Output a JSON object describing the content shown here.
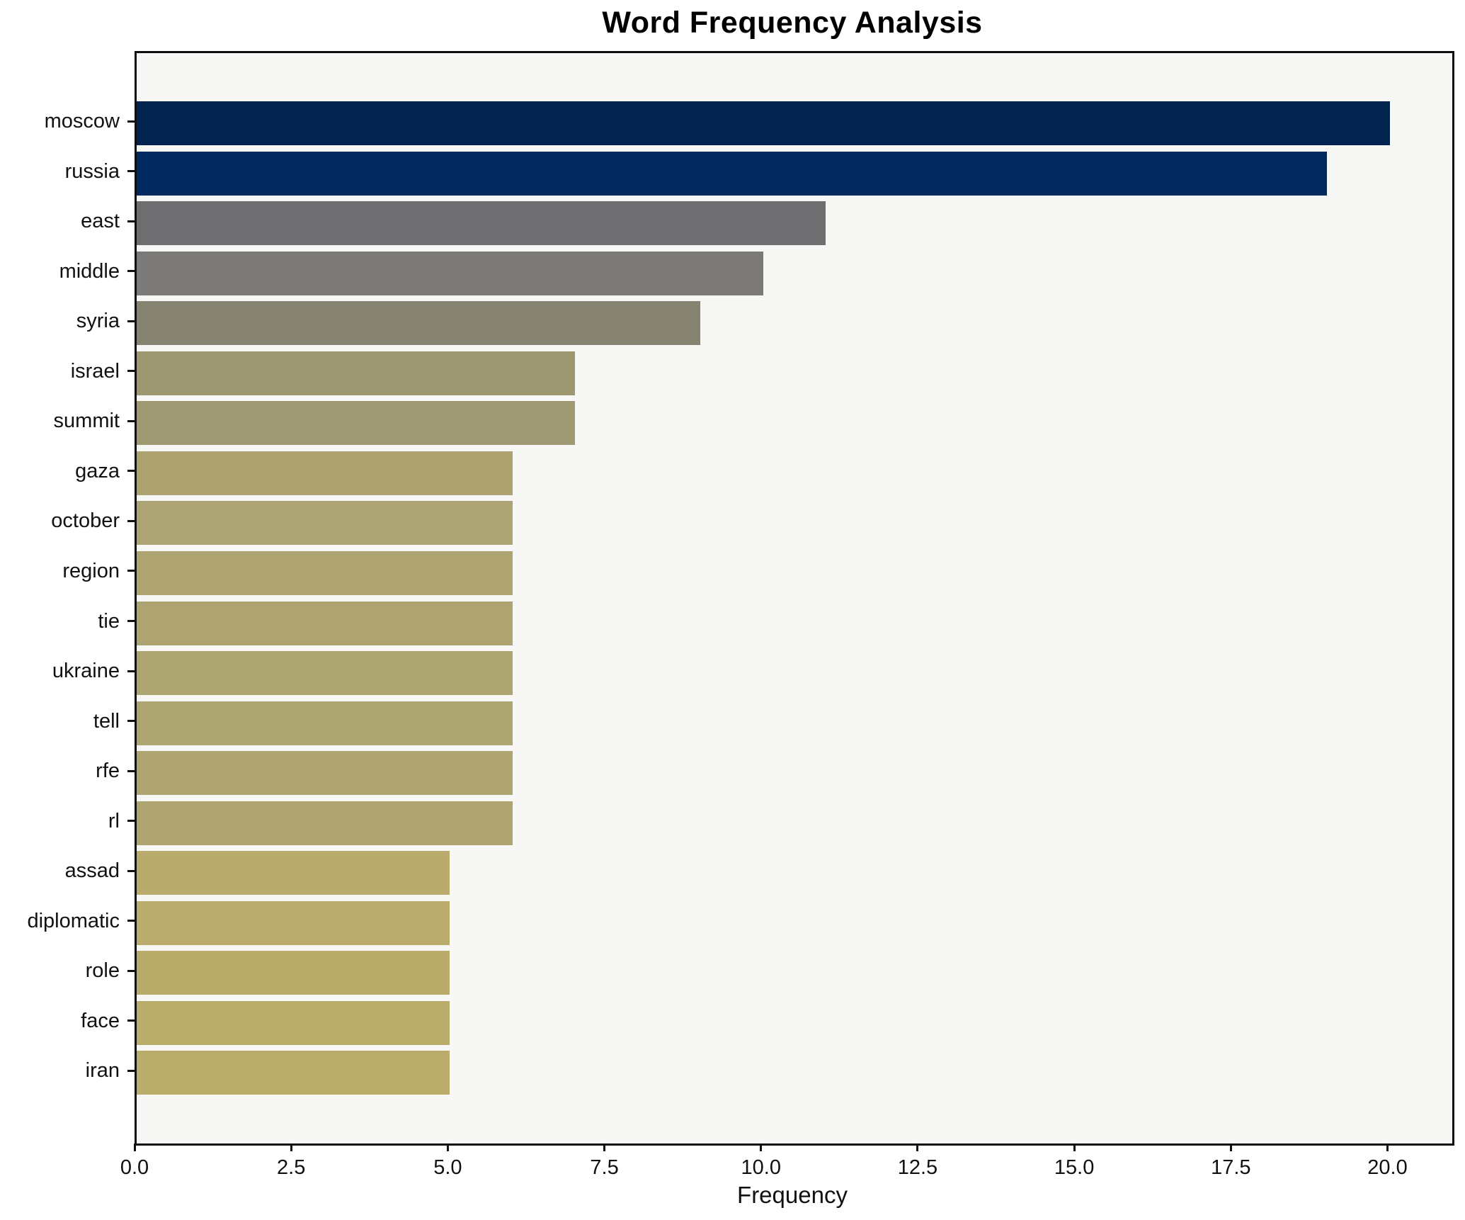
{
  "chart_data": {
    "type": "bar",
    "orientation": "horizontal",
    "title": "Word Frequency Analysis",
    "xlabel": "Frequency",
    "ylabel": "",
    "xlim": [
      0,
      21
    ],
    "grid": false,
    "legend": null,
    "categories": [
      "moscow",
      "russia",
      "east",
      "middle",
      "syria",
      "israel",
      "summit",
      "gaza",
      "october",
      "region",
      "tie",
      "ukraine",
      "tell",
      "rfe",
      "rl",
      "assad",
      "diplomatic",
      "role",
      "face",
      "iran"
    ],
    "values": [
      20,
      19,
      11,
      10,
      9,
      7,
      7,
      6,
      6,
      6,
      6,
      6,
      6,
      6,
      6,
      5,
      5,
      5,
      5,
      5
    ],
    "bar_colors": [
      "#022350",
      "#032a60",
      "#6f6f71",
      "#7b7a78",
      "#878371",
      "#9d9772",
      "#9f9973",
      "#aca371",
      "#aca472",
      "#ada471",
      "#ada471",
      "#ada572",
      "#ada572",
      "#aea572",
      "#aea571",
      "#b8ab6b",
      "#b9ac6c",
      "#b9ac6b",
      "#b9ad6c",
      "#baad6b"
    ],
    "xticks": [
      {
        "value": 0,
        "label": "0.0"
      },
      {
        "value": 2.5,
        "label": "2.5"
      },
      {
        "value": 5,
        "label": "5.0"
      },
      {
        "value": 7.5,
        "label": "7.5"
      },
      {
        "value": 10,
        "label": "10.0"
      },
      {
        "value": 12.5,
        "label": "12.5"
      },
      {
        "value": 15,
        "label": "15.0"
      },
      {
        "value": 17.5,
        "label": "17.5"
      },
      {
        "value": 20,
        "label": "20.0"
      }
    ],
    "colors": {
      "plot_background": "#f7f7f5",
      "page_background": "#ffffff",
      "spine": "#0e0e0e",
      "text": "#111111"
    }
  }
}
